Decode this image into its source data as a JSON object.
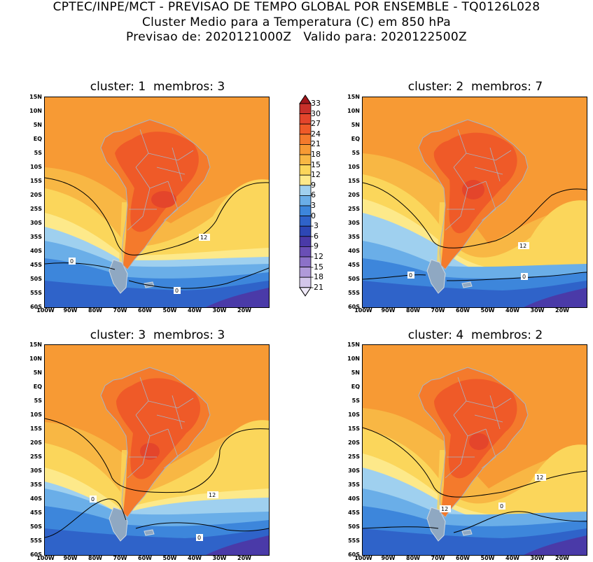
{
  "header": {
    "line1": "CPTEC/INPE/MCT - PREVISAO DE TEMPO GLOBAL POR ENSEMBLE - TQ0126L028",
    "line2": "Cluster Medio para a Temperatura (C) em 850 hPa",
    "line3": "Previsao de: 2020121000Z   Valido para: 2020122500Z"
  },
  "panels": [
    {
      "title": "cluster: 1  membros: 3",
      "contour_labels": [
        "12",
        "0",
        "0"
      ]
    },
    {
      "title": "cluster: 2  membros: 7",
      "contour_labels": [
        "12",
        "0",
        "0"
      ]
    },
    {
      "title": "cluster: 3  membros: 3",
      "contour_labels": [
        "12",
        "0",
        "0"
      ]
    },
    {
      "title": "cluster: 4  membros: 2",
      "contour_labels": [
        "12",
        "12",
        "0"
      ]
    }
  ],
  "lat_labels": [
    "15N",
    "10N",
    "5N",
    "EQ",
    "5S",
    "10S",
    "15S",
    "20S",
    "25S",
    "30S",
    "35S",
    "40S",
    "45S",
    "50S",
    "55S",
    "60S"
  ],
  "lon_labels": [
    "100W",
    "90W",
    "80W",
    "70W",
    "60W",
    "50W",
    "40W",
    "30W",
    "20W"
  ],
  "colorbar": {
    "labels": [
      "33",
      "30",
      "27",
      "24",
      "21",
      "18",
      "15",
      "12",
      "9",
      "6",
      "3",
      "0",
      "-3",
      "-6",
      "-9",
      "-12",
      "-15",
      "-18",
      "-21"
    ],
    "colors": [
      "#a0161b",
      "#c8302a",
      "#e4452b",
      "#ef5a28",
      "#f47a2c",
      "#f79a34",
      "#f8b744",
      "#fbd65b",
      "#fde98a",
      "#9fd0ef",
      "#6aaee8",
      "#3d86db",
      "#2f63c9",
      "#2d47b5",
      "#4a3aa8",
      "#6a4fb6",
      "#8c71c8",
      "#b09ad9",
      "#d3c6ea",
      "#efe9f8"
    ]
  }
}
